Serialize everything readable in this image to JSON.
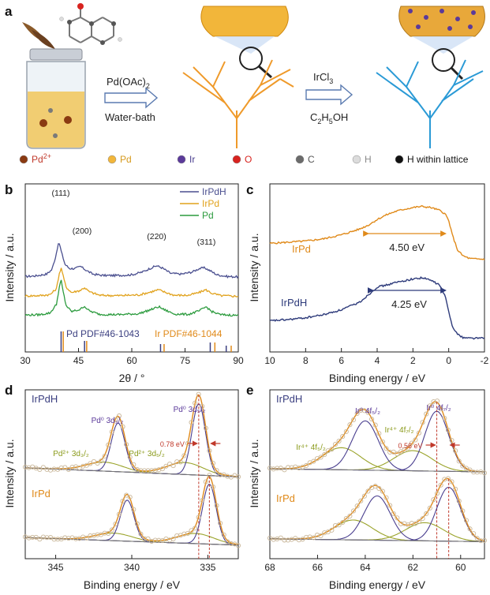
{
  "panel_a": {
    "label": "a",
    "step1": {
      "reagent": "Pd(OAc)",
      "reagent_sub": "2",
      "condition": "Water-bath"
    },
    "step2": {
      "reagent": "IrCl",
      "reagent_sub": "3",
      "solvent_parts": [
        "C",
        "2",
        "H",
        "5",
        "OH"
      ]
    },
    "legend": [
      {
        "label": "Pd",
        "sup": "2+",
        "color": "#8a3a12",
        "label_color": "#c0392b"
      },
      {
        "label": "Pd",
        "sup": "",
        "color": "#f2b63a",
        "label_color": "#d69a1e"
      },
      {
        "label": "Ir",
        "sup": "",
        "color": "#5b3a9a",
        "label_color": "#4a3f8f"
      },
      {
        "label": "O",
        "sup": "",
        "color": "#d8231f",
        "label_color": "#d8231f"
      },
      {
        "label": "C",
        "sup": "",
        "color": "#6b6b6b",
        "label_color": "#555555"
      },
      {
        "label": "H",
        "sup": "",
        "color": "#dcdcdc",
        "label_color": "#888888"
      },
      {
        "label": "H within lattice",
        "sup": "",
        "color": "#111111",
        "label_color": "#111111"
      }
    ]
  },
  "chart_data": [
    {
      "panel": "b",
      "type": "line",
      "xlabel": "2θ / °",
      "ylabel": "Intensity / a.u.",
      "xlim": [
        30,
        90
      ],
      "xticks": [
        "30",
        "45",
        "60",
        "75",
        "90"
      ],
      "series": [
        {
          "name": "IrPdH",
          "color": "#4a4f8f",
          "offset": 2.2,
          "x": [
            30,
            33,
            36,
            37.5,
            38.5,
            39.2,
            39.6,
            40.2,
            41.2,
            42.5,
            44,
            45.6,
            47,
            49,
            52,
            56,
            60,
            63,
            65.5,
            67,
            68.5,
            71,
            74,
            77,
            79,
            80.5,
            82,
            84,
            87,
            90
          ],
          "y": [
            0.05,
            0.07,
            0.12,
            0.25,
            0.6,
            0.95,
            1.0,
            0.75,
            0.4,
            0.28,
            0.28,
            0.34,
            0.24,
            0.12,
            0.08,
            0.08,
            0.1,
            0.18,
            0.3,
            0.36,
            0.3,
            0.14,
            0.12,
            0.18,
            0.28,
            0.3,
            0.22,
            0.1,
            0.05,
            0.04
          ]
        },
        {
          "name": "IrPd",
          "color": "#e1a21c",
          "offset": 1.1,
          "x": [
            30,
            34,
            37,
            38.8,
            39.6,
            40.2,
            40.7,
            41.5,
            43,
            45.5,
            46.7,
            48,
            51,
            56,
            62,
            65.5,
            67.5,
            69,
            72,
            76,
            79,
            80.8,
            82.5,
            85,
            90
          ],
          "y": [
            0.04,
            0.05,
            0.08,
            0.25,
            0.7,
            0.85,
            0.6,
            0.3,
            0.14,
            0.2,
            0.28,
            0.16,
            0.06,
            0.05,
            0.07,
            0.16,
            0.22,
            0.16,
            0.06,
            0.06,
            0.14,
            0.22,
            0.12,
            0.05,
            0.03
          ]
        },
        {
          "name": "Pd",
          "color": "#2c9b3e",
          "offset": 0.0,
          "x": [
            30,
            34,
            37,
            38.8,
            39.6,
            40.1,
            40.6,
            41.5,
            43,
            45.5,
            46.6,
            48,
            51,
            56,
            62,
            65.5,
            67.6,
            69,
            72,
            76,
            79,
            81,
            82.5,
            85,
            90
          ],
          "y": [
            0.04,
            0.05,
            0.1,
            0.35,
            0.85,
            1.05,
            0.75,
            0.32,
            0.14,
            0.2,
            0.3,
            0.16,
            0.06,
            0.05,
            0.08,
            0.2,
            0.28,
            0.2,
            0.07,
            0.06,
            0.16,
            0.28,
            0.14,
            0.05,
            0.03
          ]
        }
      ],
      "peak_labels": [
        {
          "text": "(111)",
          "x": 40
        },
        {
          "text": "(200)",
          "x": 46
        },
        {
          "text": "(220)",
          "x": 67
        },
        {
          "text": "(311)",
          "x": 81
        }
      ],
      "references": [
        {
          "name": "Pd PDF#46-1043",
          "color": "#3b3f80",
          "lines": [
            40.1,
            46.7,
            68.1,
            82.1,
            86.6
          ]
        },
        {
          "name": "Ir PDF#46-1044",
          "color": "#e08a1a",
          "lines": [
            40.7,
            47.3,
            69.1,
            83.4,
            88.0
          ]
        }
      ]
    },
    {
      "panel": "c",
      "type": "line",
      "xlabel": "Binding energy / eV",
      "ylabel": "Intensity / a.u.",
      "xlim": [
        10,
        -2
      ],
      "xticks": [
        "10",
        "8",
        "6",
        "4",
        "2",
        "0",
        "-2"
      ],
      "series": [
        {
          "name": "IrPd",
          "color": "#e08a1a",
          "offset": 1.05,
          "x": [
            10,
            9,
            8,
            7,
            6,
            5,
            4.5,
            4,
            3.5,
            3,
            2.5,
            2,
            1.5,
            1,
            0.5,
            0.2,
            0,
            -0.2,
            -0.5,
            -0.8,
            -1.2,
            -2
          ],
          "y": [
            0.3,
            0.32,
            0.34,
            0.38,
            0.45,
            0.55,
            0.62,
            0.72,
            0.8,
            0.86,
            0.9,
            0.93,
            0.95,
            0.93,
            0.88,
            0.82,
            0.7,
            0.45,
            0.18,
            0.08,
            0.03,
            0.02
          ]
        },
        {
          "name": "IrPdH",
          "color": "#2d3a7a",
          "offset": 0.0,
          "x": [
            10,
            9,
            8,
            7,
            6,
            5,
            4.5,
            4,
            3.5,
            3,
            2.5,
            2,
            1.5,
            1,
            0.5,
            0.2,
            0,
            -0.2,
            -0.5,
            -0.8,
            -1.2,
            -2
          ],
          "y": [
            0.3,
            0.32,
            0.35,
            0.4,
            0.48,
            0.6,
            0.72,
            0.85,
            0.88,
            0.92,
            0.95,
            0.98,
            1.0,
            0.96,
            0.88,
            0.7,
            0.45,
            0.22,
            0.08,
            0.03,
            0.02,
            0.02
          ]
        }
      ],
      "annotations": [
        {
          "text": "4.50 eV",
          "x_from": 4.5,
          "x_to": 0
        },
        {
          "text": "4.25 eV",
          "x_from": 4.25,
          "x_to": 0
        }
      ]
    },
    {
      "panel": "d",
      "type": "line",
      "xlabel": "Binding energy / eV",
      "ylabel": "Intensity / a.u.",
      "xlim": [
        347,
        333
      ],
      "xticks": [
        "345",
        "340",
        "335"
      ],
      "top_label": "IrPdH",
      "bottom_label": "IrPd",
      "peak_labels": [
        {
          "text": "Pd⁰ 3d₃/₂",
          "color": "#5b3a9a"
        },
        {
          "text": "Pd⁰ 3d₅/₂",
          "color": "#5b3a9a"
        },
        {
          "text": "Pd²⁺ 3d₃/₂",
          "color": "#8a9a1a"
        },
        {
          "text": "Pd²⁺ 3d₅/₂",
          "color": "#8a9a1a"
        }
      ],
      "shift": "0.78 eV",
      "peaks_top": [
        340.9,
        335.6
      ],
      "peaks_bottom": [
        340.3,
        334.9
      ]
    },
    {
      "panel": "e",
      "type": "line",
      "xlabel": "Binding energy / eV",
      "ylabel": "Intensity / a.u.",
      "xlim": [
        68,
        59
      ],
      "xticks": [
        "68",
        "66",
        "64",
        "62",
        "60"
      ],
      "top_label": "IrPdH",
      "bottom_label": "IrPd",
      "peak_labels": [
        {
          "text": "Ir⁰ 4f₅/₂",
          "color": "#5b3a9a"
        },
        {
          "text": "Ir⁰ 4f₇/₂",
          "color": "#5b3a9a"
        },
        {
          "text": "Ir⁴⁺ 4f₇/₂",
          "color": "#8a9a1a"
        },
        {
          "text": "Ir⁴⁺ 4f₅/₂",
          "color": "#8a9a1a"
        }
      ],
      "shift": "0.56 eV",
      "peaks_top": [
        64.0,
        61.0
      ],
      "peaks_bottom": [
        63.5,
        60.5
      ]
    }
  ]
}
